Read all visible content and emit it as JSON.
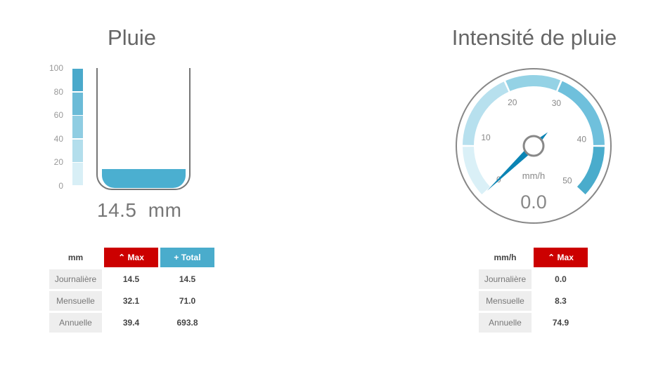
{
  "rain": {
    "title": "Pluie",
    "scale_labels": [
      "100",
      "80",
      "60",
      "40",
      "20",
      "0"
    ],
    "value": "14.5",
    "unit": "mm",
    "level_percent": 14.5,
    "scale_colors": [
      "#4aa9cb",
      "#6bbbd7",
      "#8fcde2",
      "#b3deec",
      "#d8eff6"
    ]
  },
  "rain_table": {
    "unit": "mm",
    "max_label": "Max",
    "total_label": "Total",
    "rows": [
      {
        "label": "Journalière",
        "max": "14.5",
        "total": "14.5"
      },
      {
        "label": "Mensuelle",
        "max": "32.1",
        "total": "71.0"
      },
      {
        "label": "Annuelle",
        "max": "39.4",
        "total": "693.8"
      }
    ]
  },
  "rate": {
    "title": "Intensité de pluie",
    "unit": "mm/h",
    "value": "0.0",
    "needle_value": 0,
    "min": 0,
    "max": 50,
    "tick_labels": [
      "0",
      "10",
      "20",
      "30",
      "40",
      "50"
    ],
    "band_colors": [
      "#daf0f7",
      "#b7e0ee",
      "#94d2e5",
      "#6fc0dc",
      "#4aaccc"
    ],
    "needle_color": "#0b84b4"
  },
  "rate_table": {
    "unit": "mm/h",
    "max_label": "Max",
    "rows": [
      {
        "label": "Journalière",
        "max": "0.0"
      },
      {
        "label": "Mensuelle",
        "max": "8.3"
      },
      {
        "label": "Annuelle",
        "max": "74.9"
      }
    ]
  },
  "colors": {
    "max": "#cc0000",
    "total": "#4aaccc"
  }
}
